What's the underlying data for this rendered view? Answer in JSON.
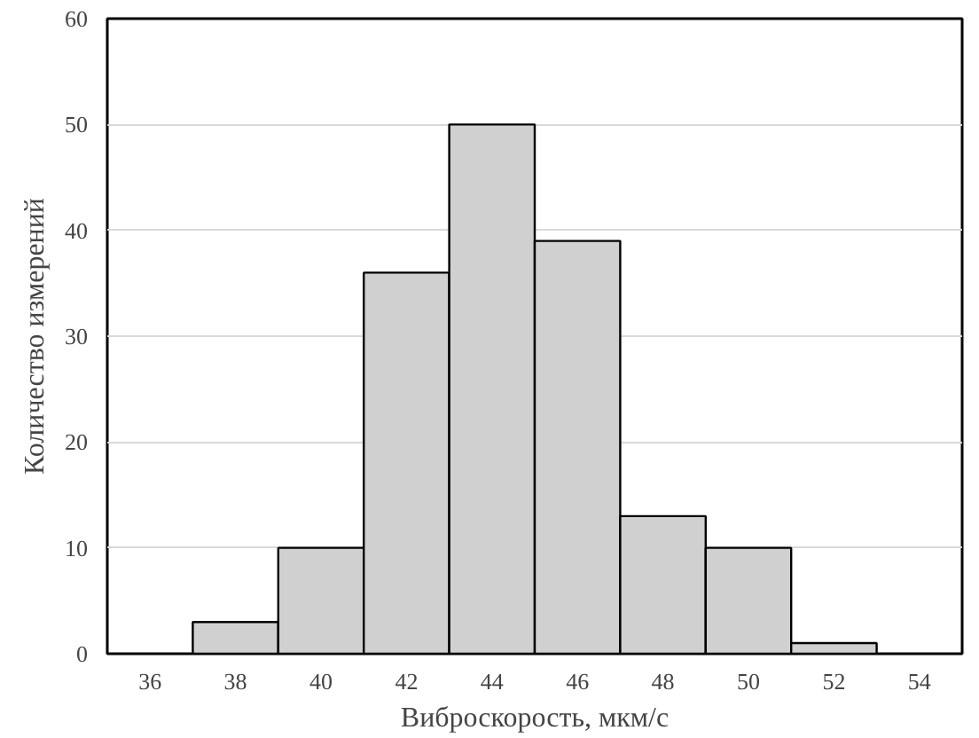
{
  "chart_data": {
    "type": "histogram",
    "xlabel": "Виброскорость, мкм/с",
    "ylabel": "Количество измерений",
    "bins": [
      37,
      39,
      41,
      43,
      45,
      47,
      49,
      51,
      53
    ],
    "values": [
      3,
      10,
      36,
      50,
      39,
      13,
      10,
      1
    ],
    "color": "#d0d0d0",
    "xlim": [
      35,
      55
    ],
    "xticks": [
      36,
      38,
      40,
      42,
      44,
      46,
      48,
      50,
      52,
      54
    ],
    "ylim": [
      0,
      60
    ],
    "yticks": [
      0,
      10,
      20,
      30,
      40,
      50,
      60
    ],
    "grid": "y"
  }
}
